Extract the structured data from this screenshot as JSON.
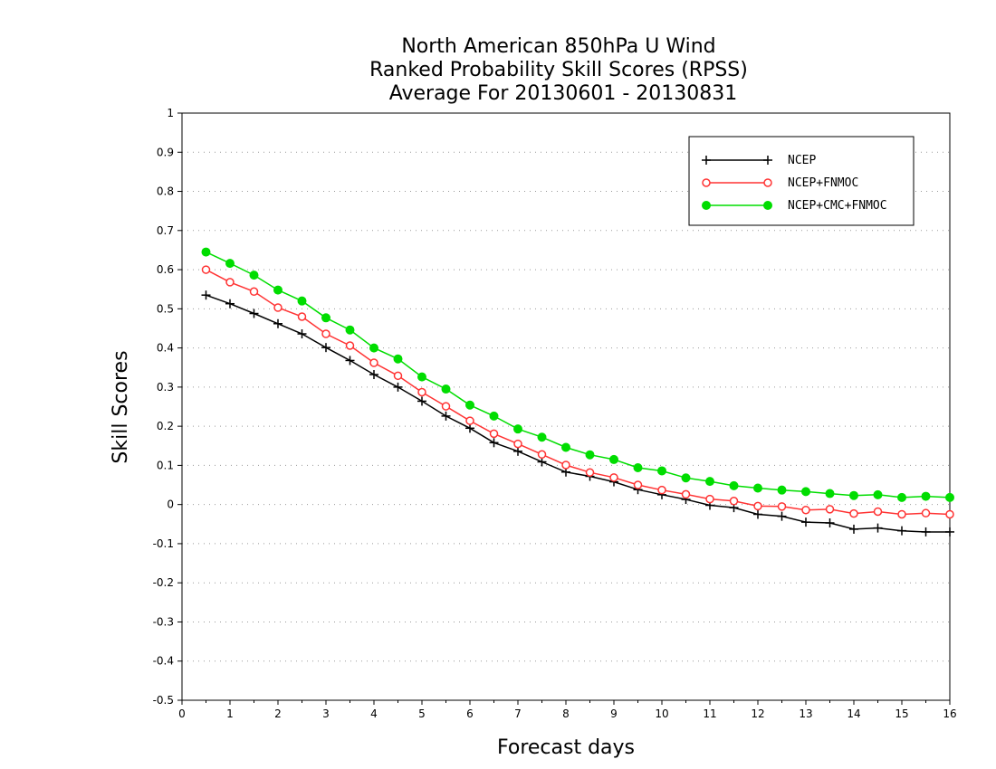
{
  "chart_data": {
    "type": "line",
    "title_lines": [
      "North American 850hPa U Wind",
      "Ranked Probability Skill Scores (RPSS)",
      "Average For 20130601 - 20130831"
    ],
    "xlabel": "Forecast days",
    "ylabel": "Skill Scores",
    "xlim": [
      0,
      16
    ],
    "ylim": [
      -0.5,
      1
    ],
    "xticks": [
      0,
      1,
      2,
      3,
      4,
      5,
      6,
      7,
      8,
      9,
      10,
      11,
      12,
      13,
      14,
      15,
      16
    ],
    "yticks": [
      -0.5,
      -0.4,
      -0.3,
      -0.2,
      -0.1,
      0,
      0.1,
      0.2,
      0.3,
      0.4,
      0.5,
      0.6,
      0.7,
      0.8,
      0.9,
      1
    ],
    "ytick_labels": [
      "-0.5",
      "-0.4",
      "-0.3",
      "-0.2",
      "-0.1",
      "0",
      "0.1",
      "0.2",
      "0.3",
      "0.4",
      "0.5",
      "0.6",
      "0.7",
      "0.8",
      "0.9",
      "1"
    ],
    "grid": "horizontal dotted",
    "legend_position": "top-right",
    "x": [
      0.5,
      1,
      1.5,
      2,
      2.5,
      3,
      3.5,
      4,
      4.5,
      5,
      5.5,
      6,
      6.5,
      7,
      7.5,
      8,
      8.5,
      9,
      9.5,
      10,
      10.5,
      11,
      11.5,
      12,
      12.5,
      13,
      13.5,
      14,
      14.5,
      15,
      15.5,
      16
    ],
    "series": [
      {
        "name": "NCEP",
        "color": "#000000",
        "marker": "plus",
        "values": [
          0.535,
          0.513,
          0.488,
          0.462,
          0.436,
          0.401,
          0.368,
          0.332,
          0.3,
          0.264,
          0.226,
          0.195,
          0.158,
          0.136,
          0.109,
          0.083,
          0.072,
          0.058,
          0.038,
          0.025,
          0.013,
          -0.002,
          -0.008,
          -0.025,
          -0.03,
          -0.045,
          -0.047,
          -0.063,
          -0.06,
          -0.067,
          -0.07,
          -0.07
        ]
      },
      {
        "name": "NCEP+FNMOC",
        "color": "#ff3333",
        "marker": "open-circle",
        "values": [
          0.6,
          0.568,
          0.544,
          0.503,
          0.48,
          0.436,
          0.406,
          0.362,
          0.329,
          0.287,
          0.251,
          0.214,
          0.181,
          0.155,
          0.128,
          0.101,
          0.082,
          0.069,
          0.05,
          0.037,
          0.026,
          0.014,
          0.009,
          -0.004,
          -0.005,
          -0.014,
          -0.012,
          -0.023,
          -0.018,
          -0.025,
          -0.022,
          -0.025
        ]
      },
      {
        "name": "NCEP+CMC+FNMOC",
        "color": "#00dd00",
        "marker": "filled-circle",
        "values": [
          0.645,
          0.616,
          0.586,
          0.548,
          0.52,
          0.477,
          0.446,
          0.4,
          0.372,
          0.326,
          0.295,
          0.254,
          0.226,
          0.193,
          0.172,
          0.146,
          0.127,
          0.115,
          0.094,
          0.086,
          0.068,
          0.059,
          0.048,
          0.042,
          0.037,
          0.033,
          0.028,
          0.023,
          0.025,
          0.018,
          0.021,
          0.018
        ]
      }
    ]
  }
}
